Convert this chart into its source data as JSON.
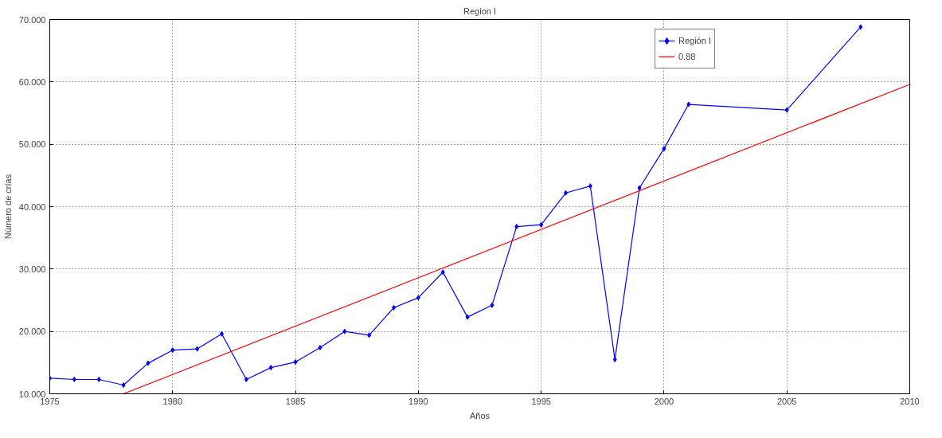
{
  "chart_data": {
    "type": "line",
    "title": "Region I",
    "xlabel": "Años",
    "ylabel": "Número de crías",
    "x": [
      1975,
      1976,
      1977,
      1978,
      1979,
      1980,
      1981,
      1982,
      1983,
      1984,
      1985,
      1986,
      1987,
      1988,
      1989,
      1990,
      1991,
      1992,
      1993,
      1994,
      1995,
      1996,
      1997,
      1998,
      1999,
      2000,
      2001,
      2005,
      2008
    ],
    "series": [
      {
        "name": "Región I",
        "color": "#0000ff",
        "marker": "diamond",
        "values": [
          12.5,
          12.3,
          12.3,
          11.4,
          14.9,
          17.0,
          17.2,
          19.6,
          12.3,
          14.2,
          15.1,
          17.4,
          20.0,
          19.4,
          23.8,
          25.4,
          29.5,
          22.3,
          24.2,
          36.8,
          37.1,
          42.2,
          43.3,
          15.5,
          43.0,
          49.3,
          56.4,
          55.5,
          68.8
        ]
      },
      {
        "name": "0.88",
        "color": "#ff0000",
        "marker": "none",
        "x": [
          1978,
          2010
        ],
        "values": [
          10.0,
          59.6
        ]
      }
    ],
    "xlim": [
      1975,
      2010
    ],
    "xticks": [
      1975,
      1980,
      1985,
      1990,
      1995,
      2000,
      2005,
      2010
    ],
    "ylim": [
      10,
      70
    ],
    "yticks": [
      {
        "value": 10,
        "label": "10.000"
      },
      {
        "value": 20,
        "label": "20.000"
      },
      {
        "value": 30,
        "label": "30.000"
      },
      {
        "value": 40,
        "label": "40.000"
      },
      {
        "value": 50,
        "label": "50.000"
      },
      {
        "value": 60,
        "label": "60.000"
      },
      {
        "value": 70,
        "label": "70.000"
      }
    ],
    "grid": true,
    "legend": "top right",
    "line_style": "solid"
  }
}
